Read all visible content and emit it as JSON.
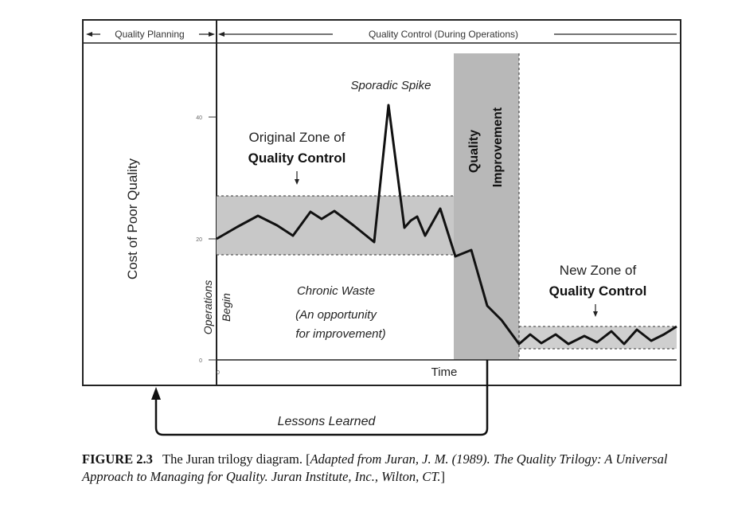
{
  "header": {
    "quality_planning": "Quality Planning",
    "quality_control": "Quality Control (During Operations)"
  },
  "axes": {
    "y_label": "Cost of Poor Quality",
    "x_label": "Time",
    "y_ticks": [
      "40",
      "20",
      "0"
    ],
    "x_tick": "0"
  },
  "labels": {
    "operations_begin_1": "Operations",
    "operations_begin_2": "Begin",
    "sporadic_spike": "Sporadic Spike",
    "original_zone_1": "Original Zone of",
    "original_zone_2": "Quality Control",
    "quality_improvement_1": "Quality",
    "quality_improvement_2": "Improvement",
    "new_zone_1": "New Zone of",
    "new_zone_2": "Quality Control",
    "chronic_waste": "Chronic Waste",
    "opportunity_1": "(An opportunity",
    "opportunity_2": "for improvement)",
    "lessons_learned": "Lessons Learned"
  },
  "caption": {
    "number": "FIGURE 2.3",
    "text": "The Juran trilogy diagram. [",
    "citation": "Adapted from Juran, J. M. (1989). The Quality Trilogy: A Universal Approach to Managing for Quality. Juran Institute, Inc., Wilton, CT.",
    "close": "]"
  },
  "colors": {
    "zone_fill": "#c8c8c8",
    "improvement_fill": "#b8b8b8",
    "line": "#111111",
    "background": "#ffffff"
  }
}
